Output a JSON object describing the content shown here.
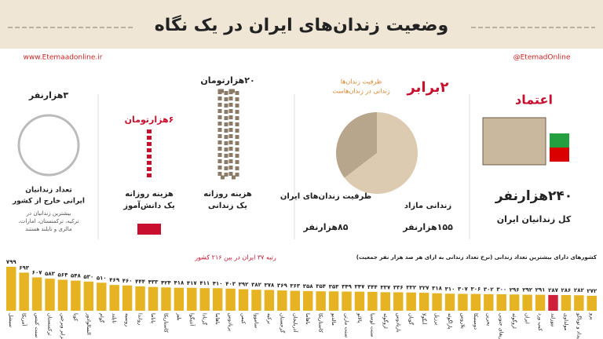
{
  "header": {
    "title": "وضعیت زندان‌های ایران در یک نگاه",
    "website": "www.Etemaadonline.ir",
    "social": "@EtemadOnline"
  },
  "total": {
    "logo": "اعتماد",
    "value": "۲۴۰هزارنفر",
    "label": "کل زندانیان ایران"
  },
  "capacity": {
    "headline": "۲برابر",
    "note_1": "ظرفیت زندان‌ها",
    "note_2": "زندانی در زندان‌هاست",
    "values": [
      155,
      85
    ],
    "labels": [
      "زندانی مازاد",
      "ظرفیت زندان‌های ایران"
    ],
    "value_labels": [
      "۱۵۵هزارنفر",
      "۸۵هزارنفر"
    ],
    "colors": [
      "#dccbb0",
      "#b7a68c"
    ]
  },
  "prisoner_cost": {
    "value": "۲۰هزارتومان",
    "label_1": "هزینه روزانه",
    "label_2": "یک زندانی"
  },
  "student_cost": {
    "value": "۶هزارتومان",
    "label_1": "هزینه روزانه",
    "label_2": "یک دانش‌آموز"
  },
  "abroad": {
    "value": "۳هزارنفر",
    "label_1": "تعداد زندانیان",
    "label_2": "ایرانی خارج از کشور",
    "note_1": "بیشترین زندانیان در",
    "note_2": "ترکیه، ترکمنستان، امارات،",
    "note_3": "مالزی و تایلند هستند"
  },
  "chart_data": {
    "type": "bar",
    "title": "کشورهای دارای بیشترین تعداد زندانی (نرخ تعداد زندانی به ازای هر صد هزار نفر جمعیت)",
    "annotation": "رتبه ۳۷ ایران در بین ۲۱۶ کشور",
    "categories": [
      "سیشل",
      "آمریکا",
      "سنت کیتس",
      "ترکمنستان",
      "جزایر ویرجین",
      "کوبا",
      "السالوادور",
      "گوام",
      "تایلند",
      "روسیه",
      "رواندا",
      "پاناما",
      "کاستاریکا",
      "بلیز",
      "آنتیگوا",
      "گرنادا",
      "باهاما",
      "بربادوس",
      "کیمن",
      "سامووا",
      "ترکیه",
      "گرجستان",
      "آذربایجان",
      "باهاما",
      "کاستاریکا",
      "مالدیو",
      "سنت مارتن",
      "پالائو",
      "سنت لوسیا",
      "اروگوئه",
      "باربادوس",
      "گویان",
      "آنگولا",
      "برزیل",
      "پاراگوئه",
      "بلاروس",
      "دومینیکا",
      "بحرین",
      "آفریقای جنوبی",
      "اروگوئه",
      "ایران",
      "کیپ ورد",
      "نیوزلند",
      "مولداوی",
      "ترینیداد و توباگو",
      "پرو"
    ],
    "values": [
      799,
      693,
      607,
      583,
      564,
      548,
      530,
      510,
      469,
      460,
      444,
      433,
      424,
      418,
      417,
      411,
      410,
      403,
      392,
      382,
      378,
      369,
      363,
      358,
      354,
      353,
      349,
      347,
      344,
      337,
      336,
      332,
      327,
      318,
      310,
      307,
      306,
      302,
      300,
      296,
      292,
      291,
      287,
      286,
      282,
      272
    ],
    "value_labels": [
      "۷۹۹",
      "۶۹۳",
      "۶۰۷",
      "۵۸۳",
      "۵۶۴",
      "۵۴۸",
      "۵۳۰",
      "۵۱۰",
      "۴۶۹",
      "۴۶۰",
      "۴۴۴",
      "۴۳۳",
      "۴۲۴",
      "۴۱۸",
      "۴۱۷",
      "۴۱۱",
      "۴۱۰",
      "۴۰۳",
      "۳۹۲",
      "۳۸۲",
      "۳۷۸",
      "۳۶۹",
      "۳۶۳",
      "۳۵۸",
      "۳۵۴",
      "۳۵۳",
      "۳۴۹",
      "۳۴۷",
      "۳۴۴",
      "۳۳۷",
      "۳۳۶",
      "۳۳۲",
      "۳۲۷",
      "۳۱۸",
      "۳۱۰",
      "۳۰۷",
      "۳۰۶",
      "۳۰۲",
      "۳۰۰",
      "۲۹۶",
      "۲۹۲",
      "۲۹۱",
      "۲۸۷",
      "۲۸۶",
      "۲۸۲",
      "۲۷۲"
    ],
    "colors": [
      "#e6b422",
      "#e6b422",
      "#e6b422",
      "#e6b422",
      "#e6b422",
      "#e6b422",
      "#e6b422",
      "#e6b422",
      "#e6b422",
      "#e6b422",
      "#e6b422",
      "#e6b422",
      "#e6b422",
      "#e6b422",
      "#e6b422",
      "#e6b422",
      "#e6b422",
      "#e6b422",
      "#e6b422",
      "#e6b422",
      "#e6b422",
      "#e6b422",
      "#e6b422",
      "#e6b422",
      "#e6b422",
      "#e6b422",
      "#e6b422",
      "#e6b422",
      "#e6b422",
      "#e6b422",
      "#e6b422",
      "#e6b422",
      "#e6b422",
      "#e6b422",
      "#e6b422",
      "#e6b422",
      "#e6b422",
      "#e6b422",
      "#e6b422",
      "#e6b422",
      "#e6b422",
      "#e6b422",
      "#d0213a",
      "#e6b422",
      "#e6b422",
      "#e6b422"
    ]
  }
}
